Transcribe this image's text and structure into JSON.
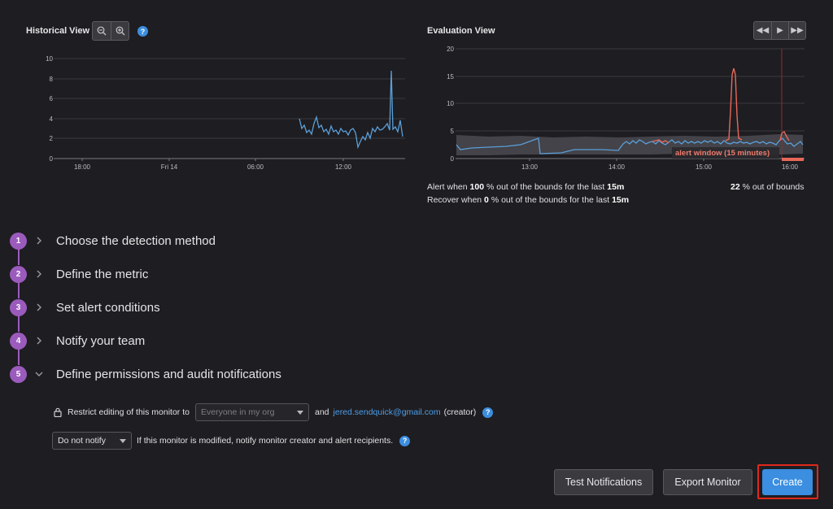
{
  "historical": {
    "title": "Historical View",
    "help": "?",
    "zoom_out_icon": "zoom-out-icon",
    "zoom_in_icon": "zoom-in-icon",
    "y_ticks": [
      "10",
      "8",
      "6",
      "4",
      "2",
      "0"
    ],
    "x_ticks": [
      "18:00",
      "Fri 14",
      "06:00",
      "12:00"
    ],
    "line_color": "#5b9fd8"
  },
  "evaluation": {
    "title": "Evaluation View",
    "controls": [
      "rewind-icon",
      "play-icon",
      "fast-forward-icon"
    ],
    "y_ticks": [
      "20",
      "15",
      "10",
      "5",
      "0"
    ],
    "x_ticks": [
      "13:00",
      "14:00",
      "15:00",
      "16:00"
    ],
    "alert_window_label": "alert window (15 minutes)",
    "alert_color": "#e8685a",
    "alert_rule": {
      "prefix": "Alert when",
      "percent": "100",
      "middle": "% out of the bounds for the last",
      "window": "15m"
    },
    "recover_rule": {
      "prefix": "Recover when",
      "percent": "0",
      "middle": "% out of the bounds for the last",
      "window": "15m"
    },
    "out_of_bounds": {
      "value": "22",
      "suffix": "% out of bounds"
    }
  },
  "steps": [
    {
      "num": "1",
      "label": "Choose the detection method",
      "expanded": false
    },
    {
      "num": "2",
      "label": "Define the metric",
      "expanded": false
    },
    {
      "num": "3",
      "label": "Set alert conditions",
      "expanded": false
    },
    {
      "num": "4",
      "label": "Notify your team",
      "expanded": false
    },
    {
      "num": "5",
      "label": "Define permissions and audit notifications",
      "expanded": true
    }
  ],
  "permissions": {
    "restrict_label": "Restrict editing of this monitor to",
    "restrict_placeholder": "Everyone in my org",
    "and_text": "and",
    "creator_email": "jered.sendquick@gmail.com",
    "creator_suffix": "(creator)",
    "notify_value": "Do not notify",
    "notify_text": "If this monitor is modified, notify monitor creator and alert recipients."
  },
  "buttons": {
    "test": "Test Notifications",
    "export": "Export Monitor",
    "create": "Create"
  }
}
